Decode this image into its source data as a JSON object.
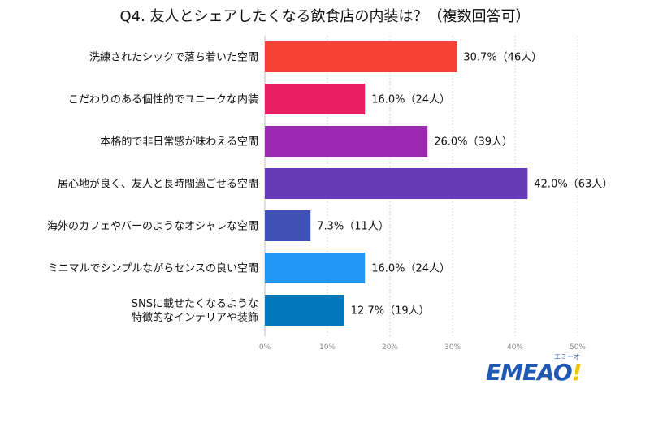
{
  "chart_data": {
    "type": "bar",
    "orientation": "horizontal",
    "title": "Q4. 友人とシェアしたくなる飲食店の内装は？（複数回答可）",
    "categories": [
      [
        "洗練されたシックで落ち着いた空間"
      ],
      [
        "こだわりのある個性的でユニークな内装"
      ],
      [
        "本格的で非日常感が味わえる空間"
      ],
      [
        "居心地が良く、友人と長時間過ごせる空間"
      ],
      [
        "海外のカフェやバーのようなオシャレな空間"
      ],
      [
        "ミニマルでシンプルながらセンスの良い空間"
      ],
      [
        "SNSに載せたくなるような",
        "特徴的なインテリアや装飾"
      ]
    ],
    "values": [
      30.7,
      16.0,
      26.0,
      42.0,
      7.3,
      16.0,
      12.7
    ],
    "value_labels": [
      "30.7%（46人）",
      "16.0%（24人）",
      "26.0%（39人）",
      "42.0%（63人）",
      "7.3%（11人）",
      "16.0%（24人）",
      "12.7%（19人）"
    ],
    "bar_colors": [
      "#f44336",
      "#e91e63",
      "#9c27b0",
      "#673ab7",
      "#3f51b5",
      "#2196f3",
      "#0277bd"
    ],
    "x_ticks": [
      0,
      10,
      20,
      30,
      40,
      50
    ],
    "x_tick_labels": [
      "0%",
      "10%",
      "20%",
      "30%",
      "40%",
      "50%"
    ],
    "xlim": [
      0,
      50
    ],
    "grid": true,
    "xlabel": "",
    "ylabel": ""
  },
  "logo": {
    "main": "EMEAO",
    "bang": "!",
    "small": "エミーオ"
  }
}
